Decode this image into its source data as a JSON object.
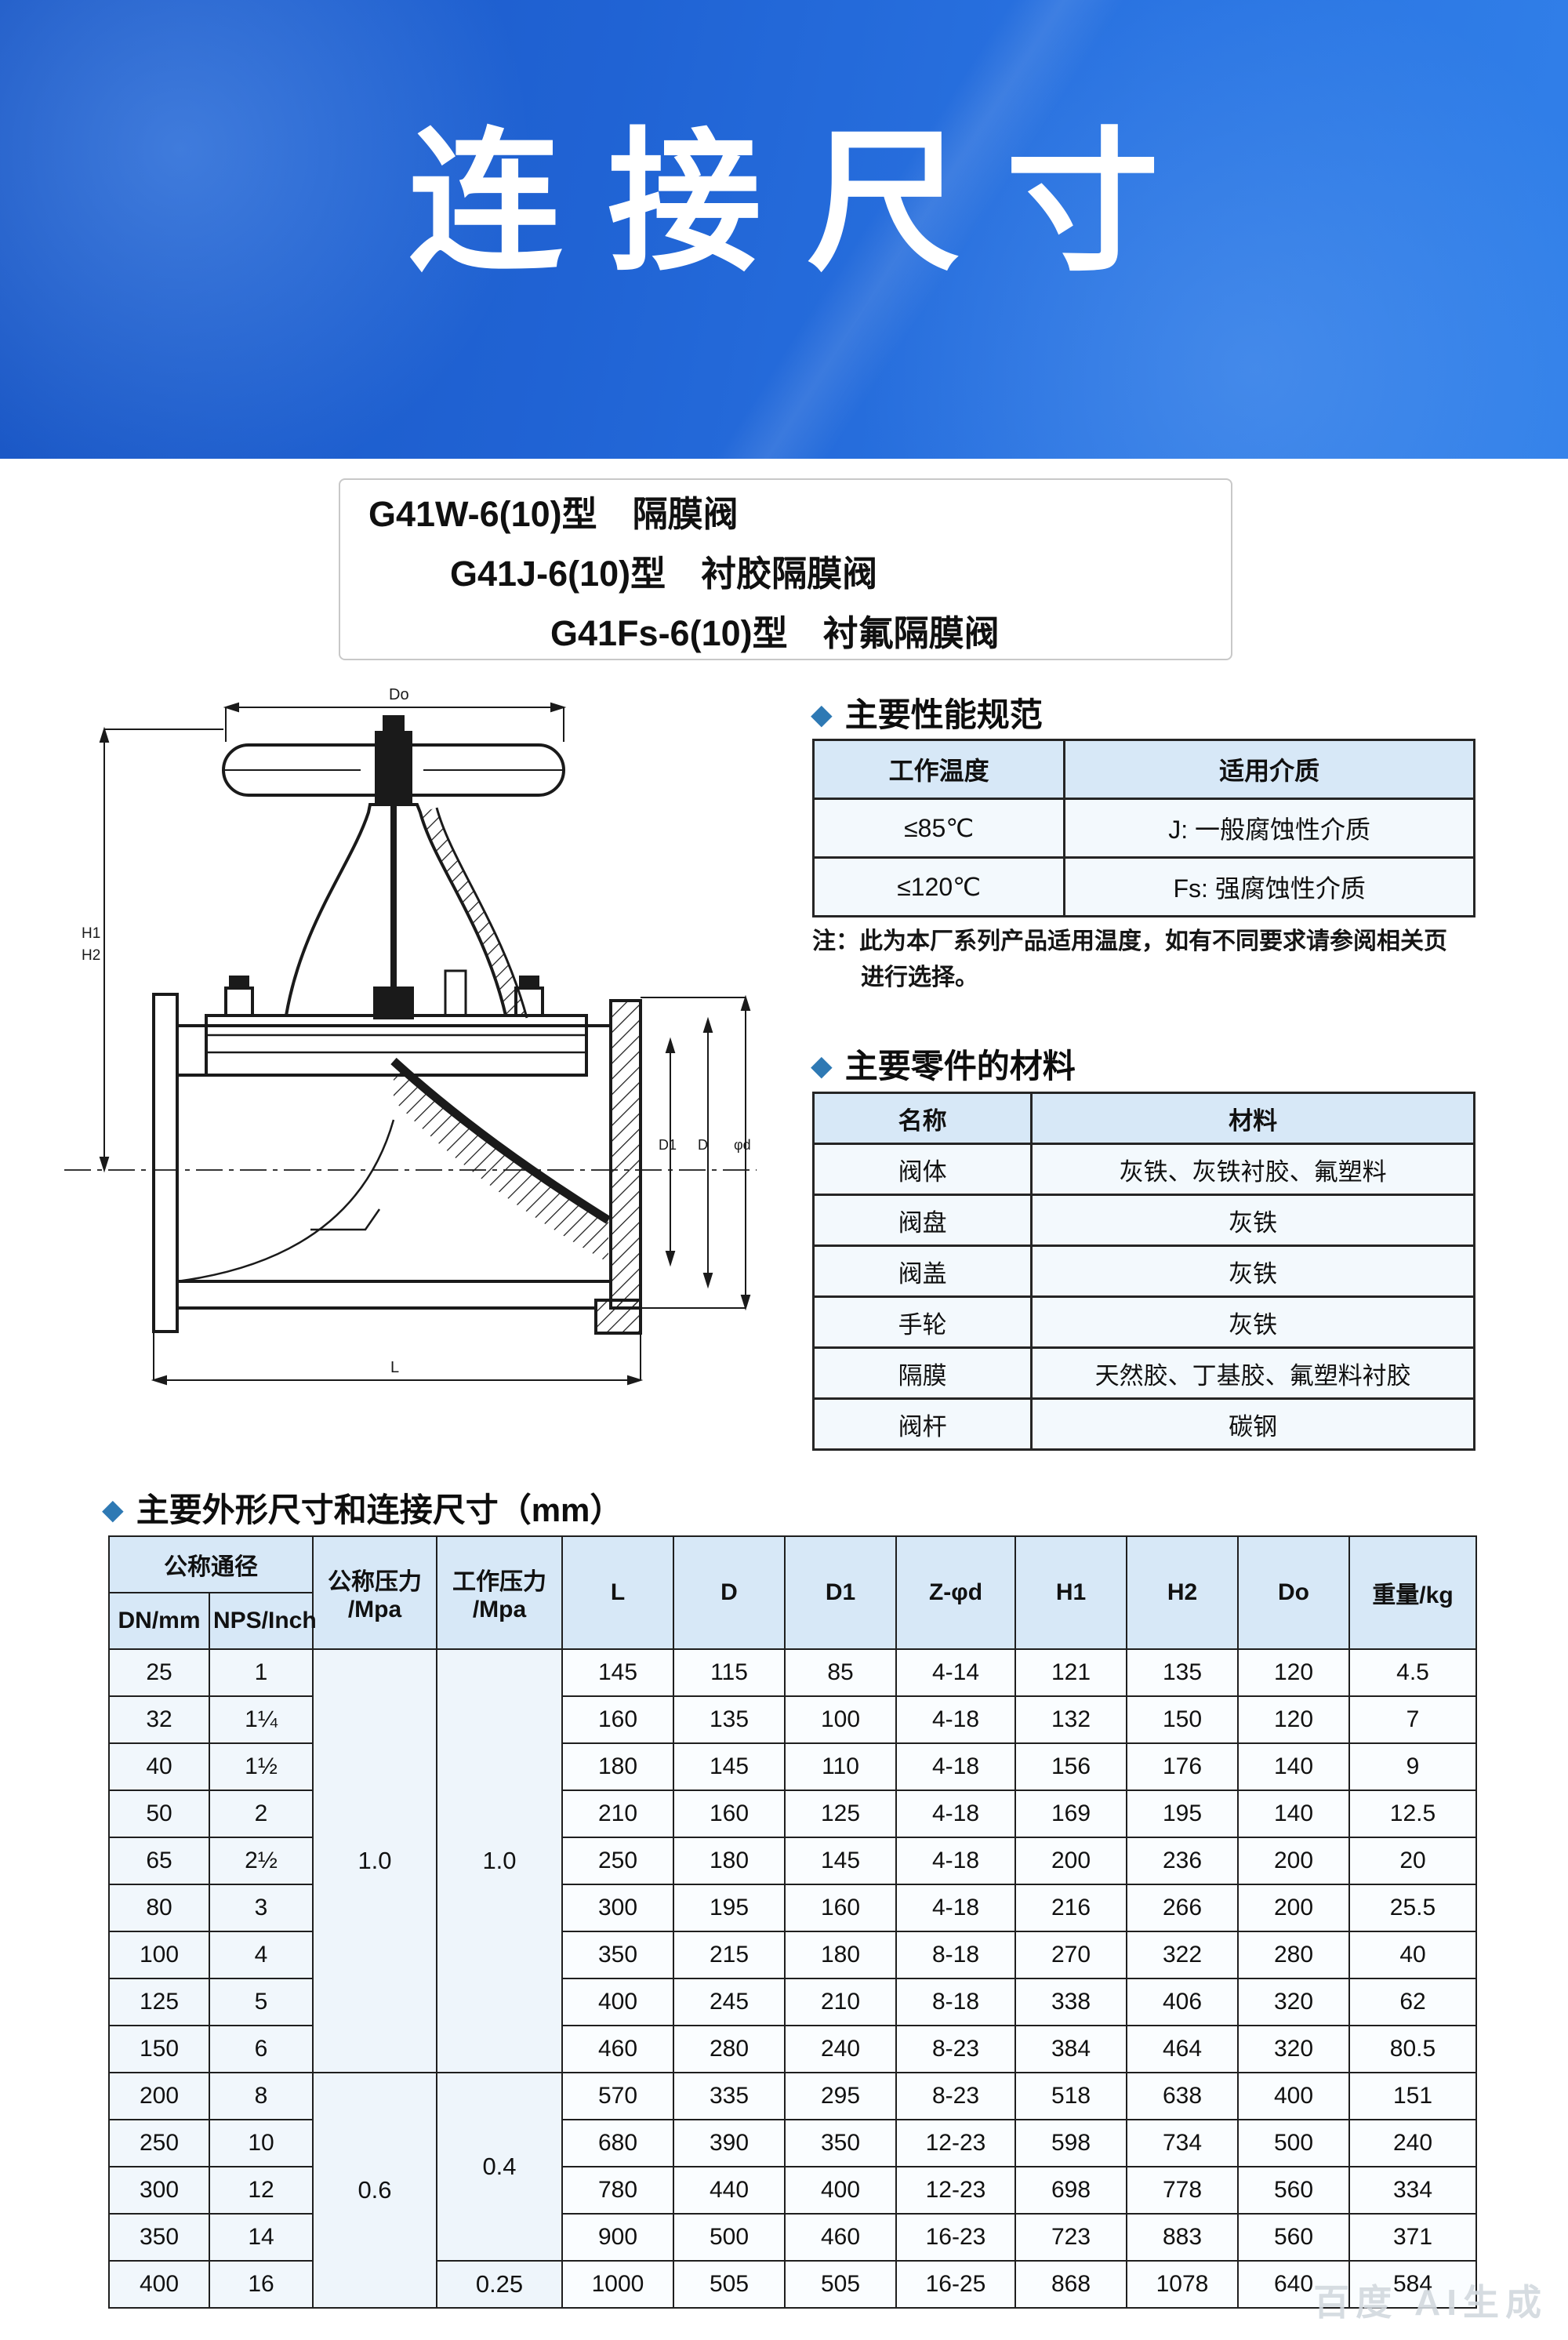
{
  "banner": {
    "title": "连接尺寸",
    "bg_left": "#1a56c4",
    "bg_right": "#3180e9"
  },
  "models": {
    "line1": "G41W-6(10)型　隔膜阀",
    "line2": "G41J-6(10)型　衬胶隔膜阀",
    "line3": "G41Fs-6(10)型　衬氟隔膜阀"
  },
  "perf": {
    "heading": "主要性能规范",
    "bullet": "◆",
    "headers": [
      "工作温度",
      "适用介质"
    ],
    "rows": [
      [
        "≤85℃",
        "J:  一般腐蚀性介质"
      ],
      [
        "≤120℃",
        "Fs:  强腐蚀性介质"
      ]
    ],
    "note1": "注：此为本厂系列产品适用温度，如有不同要求请参阅相关页",
    "note2": "进行选择。"
  },
  "materials": {
    "heading": "主要零件的材料",
    "bullet": "◆",
    "headers": [
      "名称",
      "材料"
    ],
    "rows": [
      [
        "阀体",
        "灰铁、灰铁衬胶、氟塑料"
      ],
      [
        "阀盘",
        "灰铁"
      ],
      [
        "阀盖",
        "灰铁"
      ],
      [
        "手轮",
        "灰铁"
      ],
      [
        "隔膜",
        "天然胶、丁基胶、氟塑料衬胶"
      ],
      [
        "阀杆",
        "碳钢"
      ]
    ]
  },
  "dims": {
    "heading": "主要外形尺寸和连接尺寸（mm）",
    "bullet": "◆",
    "group_header": "公称通径",
    "sub_headers": [
      "DN/mm",
      "NPS/Inch"
    ],
    "pressure_headers": [
      "公称压力\n/Mpa",
      "工作压力\n/Mpa"
    ],
    "value_headers": [
      "L",
      "D",
      "D1",
      "Z-φd",
      "H1",
      "H2",
      "Do",
      "重量/kg"
    ],
    "rows": [
      {
        "dn": "25",
        "nps": "1",
        "np": {
          "value": "1.0",
          "rowspan": 9
        },
        "wp": {
          "value": "1.0",
          "rowspan": 9
        },
        "values": [
          "145",
          "115",
          "85",
          "4-14",
          "121",
          "135",
          "120",
          "4.5"
        ]
      },
      {
        "dn": "32",
        "nps": "1¼",
        "values": [
          "160",
          "135",
          "100",
          "4-18",
          "132",
          "150",
          "120",
          "7"
        ]
      },
      {
        "dn": "40",
        "nps": "1½",
        "values": [
          "180",
          "145",
          "110",
          "4-18",
          "156",
          "176",
          "140",
          "9"
        ]
      },
      {
        "dn": "50",
        "nps": "2",
        "values": [
          "210",
          "160",
          "125",
          "4-18",
          "169",
          "195",
          "140",
          "12.5"
        ]
      },
      {
        "dn": "65",
        "nps": "2½",
        "values": [
          "250",
          "180",
          "145",
          "4-18",
          "200",
          "236",
          "200",
          "20"
        ]
      },
      {
        "dn": "80",
        "nps": "3",
        "values": [
          "300",
          "195",
          "160",
          "4-18",
          "216",
          "266",
          "200",
          "25.5"
        ]
      },
      {
        "dn": "100",
        "nps": "4",
        "values": [
          "350",
          "215",
          "180",
          "8-18",
          "270",
          "322",
          "280",
          "40"
        ]
      },
      {
        "dn": "125",
        "nps": "5",
        "values": [
          "400",
          "245",
          "210",
          "8-18",
          "338",
          "406",
          "320",
          "62"
        ]
      },
      {
        "dn": "150",
        "nps": "6",
        "values": [
          "460",
          "280",
          "240",
          "8-23",
          "384",
          "464",
          "320",
          "80.5"
        ]
      },
      {
        "dn": "200",
        "nps": "8",
        "np": {
          "value": "0.6",
          "rowspan": 5
        },
        "wp": {
          "value": "0.4",
          "rowspan": 4
        },
        "values": [
          "570",
          "335",
          "295",
          "8-23",
          "518",
          "638",
          "400",
          "151"
        ]
      },
      {
        "dn": "250",
        "nps": "10",
        "values": [
          "680",
          "390",
          "350",
          "12-23",
          "598",
          "734",
          "500",
          "240"
        ]
      },
      {
        "dn": "300",
        "nps": "12",
        "values": [
          "780",
          "440",
          "400",
          "12-23",
          "698",
          "778",
          "560",
          "334"
        ]
      },
      {
        "dn": "350",
        "nps": "14",
        "values": [
          "900",
          "500",
          "460",
          "16-23",
          "723",
          "883",
          "560",
          "371"
        ]
      },
      {
        "dn": "400",
        "nps": "16",
        "wp": {
          "value": "0.25",
          "rowspan": 1
        },
        "values": [
          "1000",
          "505",
          "505",
          "16-25",
          "868",
          "1078",
          "640",
          "584"
        ]
      }
    ]
  },
  "drawing": {
    "labels": {
      "do": "Do",
      "h1": "H1",
      "h2": "H2",
      "d1": "D1",
      "d": "D",
      "phid": "φd",
      "l": "L"
    }
  },
  "watermark": "百度 AI生成"
}
